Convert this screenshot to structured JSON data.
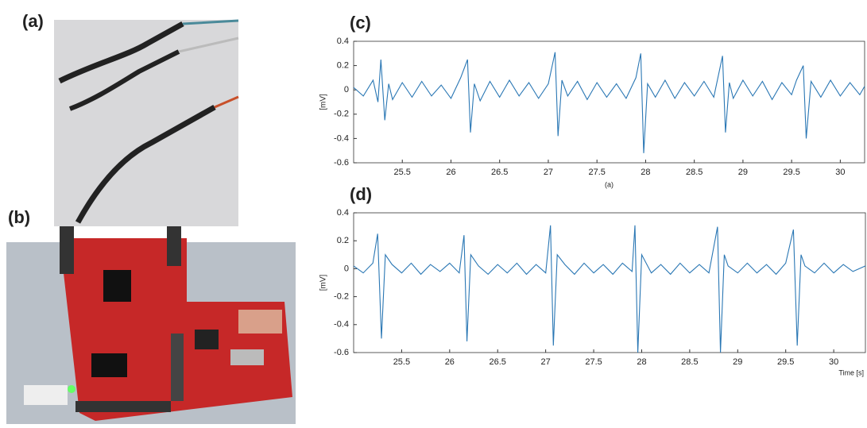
{
  "panel_labels": [
    "(a)",
    "(b)"
  ],
  "chart_data": [
    {
      "type": "line",
      "title": "(c)",
      "ylabel": "[mV]",
      "xlabel": "(a)",
      "color": "#2a77b4",
      "xlim": [
        25.0,
        30.25
      ],
      "ylim": [
        -0.6,
        0.4
      ],
      "xticks": [
        25.5,
        26,
        26.5,
        27,
        27.5,
        28,
        28.5,
        29,
        29.5,
        30
      ],
      "yticks": [
        -0.6,
        -0.4,
        -0.2,
        0,
        0.2,
        0.4
      ],
      "x": [
        25.0,
        25.1,
        25.2,
        25.25,
        25.28,
        25.32,
        25.36,
        25.4,
        25.5,
        25.6,
        25.7,
        25.8,
        25.9,
        26.0,
        26.1,
        26.17,
        26.2,
        26.24,
        26.3,
        26.4,
        26.5,
        26.6,
        26.7,
        26.8,
        26.9,
        27.0,
        27.07,
        27.1,
        27.14,
        27.2,
        27.3,
        27.4,
        27.5,
        27.6,
        27.7,
        27.8,
        27.9,
        27.95,
        27.98,
        28.02,
        28.1,
        28.2,
        28.3,
        28.4,
        28.5,
        28.6,
        28.7,
        28.79,
        28.82,
        28.86,
        28.9,
        29.0,
        29.1,
        29.2,
        29.3,
        29.4,
        29.5,
        29.55,
        29.62,
        29.65,
        29.7,
        29.8,
        29.9,
        30.0,
        30.1,
        30.2,
        30.25
      ],
      "values": [
        0.02,
        -0.05,
        0.08,
        -0.1,
        0.25,
        -0.25,
        0.05,
        -0.08,
        0.06,
        -0.06,
        0.07,
        -0.05,
        0.04,
        -0.07,
        0.1,
        0.25,
        -0.35,
        0.05,
        -0.09,
        0.07,
        -0.06,
        0.08,
        -0.05,
        0.06,
        -0.07,
        0.05,
        0.31,
        -0.38,
        0.08,
        -0.05,
        0.07,
        -0.08,
        0.06,
        -0.06,
        0.05,
        -0.07,
        0.1,
        0.3,
        -0.52,
        0.05,
        -0.06,
        0.08,
        -0.07,
        0.06,
        -0.05,
        0.07,
        -0.06,
        0.28,
        -0.35,
        0.06,
        -0.07,
        0.08,
        -0.05,
        0.07,
        -0.08,
        0.06,
        -0.04,
        0.08,
        0.2,
        -0.4,
        0.07,
        -0.06,
        0.08,
        -0.05,
        0.06,
        -0.04,
        0.03
      ]
    },
    {
      "type": "line",
      "title": "(d)",
      "ylabel": "[mV]",
      "xlabel": "Time [s]",
      "color": "#2a77b4",
      "xlim": [
        25.0,
        30.33
      ],
      "ylim": [
        -0.6,
        0.4
      ],
      "xticks": [
        25.5,
        26,
        26.5,
        27,
        27.5,
        28,
        28.5,
        29,
        29.5,
        30
      ],
      "yticks": [
        -0.6,
        -0.4,
        -0.2,
        0,
        0.2,
        0.4
      ],
      "x": [
        25.0,
        25.1,
        25.2,
        25.25,
        25.29,
        25.33,
        25.4,
        25.5,
        25.6,
        25.7,
        25.8,
        25.9,
        26.0,
        26.1,
        26.15,
        26.18,
        26.22,
        26.3,
        26.4,
        26.5,
        26.6,
        26.7,
        26.8,
        26.9,
        27.0,
        27.05,
        27.08,
        27.12,
        27.2,
        27.3,
        27.4,
        27.5,
        27.6,
        27.7,
        27.8,
        27.9,
        27.93,
        27.96,
        28.0,
        28.1,
        28.2,
        28.3,
        28.4,
        28.5,
        28.6,
        28.7,
        28.79,
        28.82,
        28.86,
        28.9,
        29.0,
        29.1,
        29.2,
        29.3,
        29.4,
        29.5,
        29.58,
        29.62,
        29.66,
        29.7,
        29.8,
        29.9,
        30.0,
        30.1,
        30.2,
        30.33
      ],
      "values": [
        0.02,
        -0.03,
        0.04,
        0.25,
        -0.5,
        0.1,
        0.03,
        -0.03,
        0.04,
        -0.04,
        0.03,
        -0.02,
        0.04,
        -0.03,
        0.24,
        -0.52,
        0.1,
        0.02,
        -0.04,
        0.03,
        -0.03,
        0.04,
        -0.04,
        0.03,
        -0.03,
        0.31,
        -0.55,
        0.1,
        0.03,
        -0.04,
        0.04,
        -0.03,
        0.03,
        -0.04,
        0.04,
        -0.02,
        0.31,
        -0.6,
        0.1,
        -0.03,
        0.03,
        -0.04,
        0.04,
        -0.03,
        0.03,
        -0.03,
        0.3,
        -0.6,
        0.1,
        0.02,
        -0.03,
        0.04,
        -0.03,
        0.03,
        -0.04,
        0.04,
        0.28,
        -0.55,
        0.1,
        0.02,
        -0.03,
        0.04,
        -0.03,
        0.03,
        -0.02,
        0.02
      ]
    }
  ]
}
